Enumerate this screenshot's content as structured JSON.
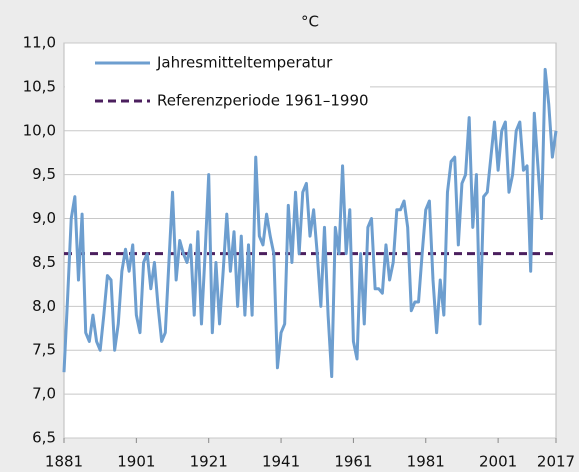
{
  "chart_data": {
    "type": "line",
    "title": "°C",
    "x": [
      1881,
      1882,
      1883,
      1884,
      1885,
      1886,
      1887,
      1888,
      1889,
      1890,
      1891,
      1892,
      1893,
      1894,
      1895,
      1896,
      1897,
      1898,
      1899,
      1900,
      1901,
      1902,
      1903,
      1904,
      1905,
      1906,
      1907,
      1908,
      1909,
      1910,
      1911,
      1912,
      1913,
      1914,
      1915,
      1916,
      1917,
      1918,
      1919,
      1920,
      1921,
      1922,
      1923,
      1924,
      1925,
      1926,
      1927,
      1928,
      1929,
      1930,
      1931,
      1932,
      1933,
      1934,
      1935,
      1936,
      1937,
      1938,
      1939,
      1940,
      1941,
      1942,
      1943,
      1944,
      1945,
      1946,
      1947,
      1948,
      1949,
      1950,
      1951,
      1952,
      1953,
      1954,
      1955,
      1956,
      1957,
      1958,
      1959,
      1960,
      1961,
      1962,
      1963,
      1964,
      1965,
      1966,
      1967,
      1968,
      1969,
      1970,
      1971,
      1972,
      1973,
      1974,
      1975,
      1976,
      1977,
      1978,
      1979,
      1980,
      1981,
      1982,
      1983,
      1984,
      1985,
      1986,
      1987,
      1988,
      1989,
      1990,
      1991,
      1992,
      1993,
      1994,
      1995,
      1996,
      1997,
      1998,
      1999,
      2000,
      2001,
      2002,
      2003,
      2004,
      2005,
      2006,
      2007,
      2008,
      2009,
      2010,
      2011,
      2012,
      2013,
      2014,
      2015,
      2016,
      2017
    ],
    "series": [
      {
        "name": "Jahresmitteltemperatur",
        "color": "#6d9ecf",
        "values": [
          7.25,
          8.1,
          9.0,
          9.25,
          8.3,
          9.05,
          7.7,
          7.6,
          7.9,
          7.6,
          7.5,
          7.9,
          8.35,
          8.3,
          7.5,
          7.8,
          8.4,
          8.65,
          8.4,
          8.7,
          7.9,
          7.7,
          8.5,
          8.6,
          8.2,
          8.5,
          8.0,
          7.6,
          7.7,
          8.5,
          9.3,
          8.3,
          8.75,
          8.6,
          8.5,
          8.7,
          7.9,
          8.85,
          7.8,
          8.6,
          9.5,
          7.7,
          8.5,
          7.8,
          8.4,
          9.05,
          8.4,
          8.85,
          8.0,
          8.8,
          7.9,
          8.7,
          7.9,
          9.7,
          8.8,
          8.7,
          9.05,
          8.8,
          8.6,
          7.3,
          7.7,
          7.8,
          9.15,
          8.5,
          9.3,
          8.6,
          9.3,
          9.4,
          8.8,
          9.1,
          8.6,
          8.0,
          8.9,
          7.9,
          7.2,
          8.9,
          8.6,
          9.6,
          8.6,
          9.1,
          7.6,
          7.4,
          8.6,
          7.8,
          8.9,
          9.0,
          8.2,
          8.2,
          8.15,
          8.7,
          8.3,
          8.5,
          9.1,
          9.1,
          9.2,
          8.9,
          7.95,
          8.05,
          8.05,
          8.6,
          9.1,
          9.2,
          8.3,
          7.7,
          8.3,
          7.9,
          9.3,
          9.65,
          9.7,
          8.7,
          9.4,
          9.5,
          10.15,
          8.9,
          9.5,
          7.8,
          9.25,
          9.3,
          9.7,
          10.1,
          9.55,
          10.0,
          10.1,
          9.3,
          9.5,
          10.0,
          10.1,
          9.55,
          9.6,
          8.4,
          10.2,
          9.6,
          9.0,
          10.7,
          10.3,
          9.7,
          10.0
        ]
      }
    ],
    "reference_line": {
      "name": "Referenzperiode 1961–1990",
      "value": 8.6,
      "color": "#4b1f5e"
    },
    "xlim": [
      1881,
      2017
    ],
    "xticks": [
      1881,
      1901,
      1921,
      1941,
      1961,
      1981,
      2001,
      2017
    ],
    "ylim": [
      6.5,
      11
    ],
    "yticks": [
      {
        "value": 6.5,
        "label": "6,5"
      },
      {
        "value": 7,
        "label": "7,0"
      },
      {
        "value": 7.5,
        "label": "7,5"
      },
      {
        "value": 8,
        "label": "8,0"
      },
      {
        "value": 8.5,
        "label": "8,5"
      },
      {
        "value": 9,
        "label": "9,0"
      },
      {
        "value": 9.5,
        "label": "9,5"
      },
      {
        "value": 10,
        "label": "10,0"
      },
      {
        "value": 10.5,
        "label": "10,5"
      },
      {
        "value": 11,
        "label": "11,0"
      }
    ],
    "grid": true,
    "legend": "top-left"
  }
}
